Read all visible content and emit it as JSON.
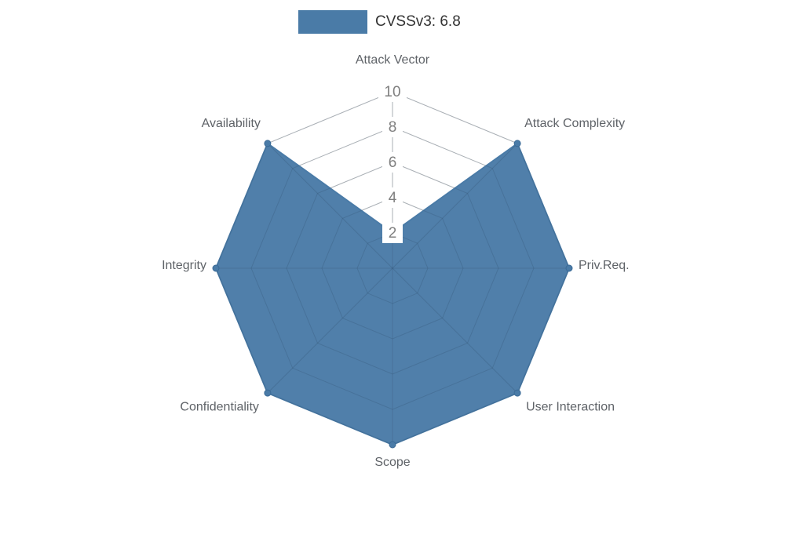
{
  "legend": {
    "label": "CVSSv3: 6.8",
    "swatch_color": "#4a7ba7"
  },
  "colors": {
    "series_fill": "#4a7ba7",
    "grid": "#cccccc",
    "category_label": "#5f6368",
    "tick_label": "#7f7f7f",
    "legend_text": "#333333",
    "background": "#ffffff"
  },
  "chart_data": {
    "type": "radar",
    "title": "",
    "categories": [
      "Attack Vector",
      "Attack Complexity",
      "Priv.Req.",
      "User Interaction",
      "Scope",
      "Confidentiality",
      "Integrity",
      "Availability"
    ],
    "series": [
      {
        "name": "CVSSv3: 6.8",
        "values": [
          2,
          10,
          10,
          10,
          10,
          10,
          10,
          10
        ],
        "color": "#4a7ba7"
      }
    ],
    "rmin": 0,
    "rmax": 10,
    "radial_ticks": [
      2,
      4,
      6,
      8,
      10
    ],
    "grid_shape": "polygon",
    "grid_on": true,
    "legend_position": "top"
  }
}
